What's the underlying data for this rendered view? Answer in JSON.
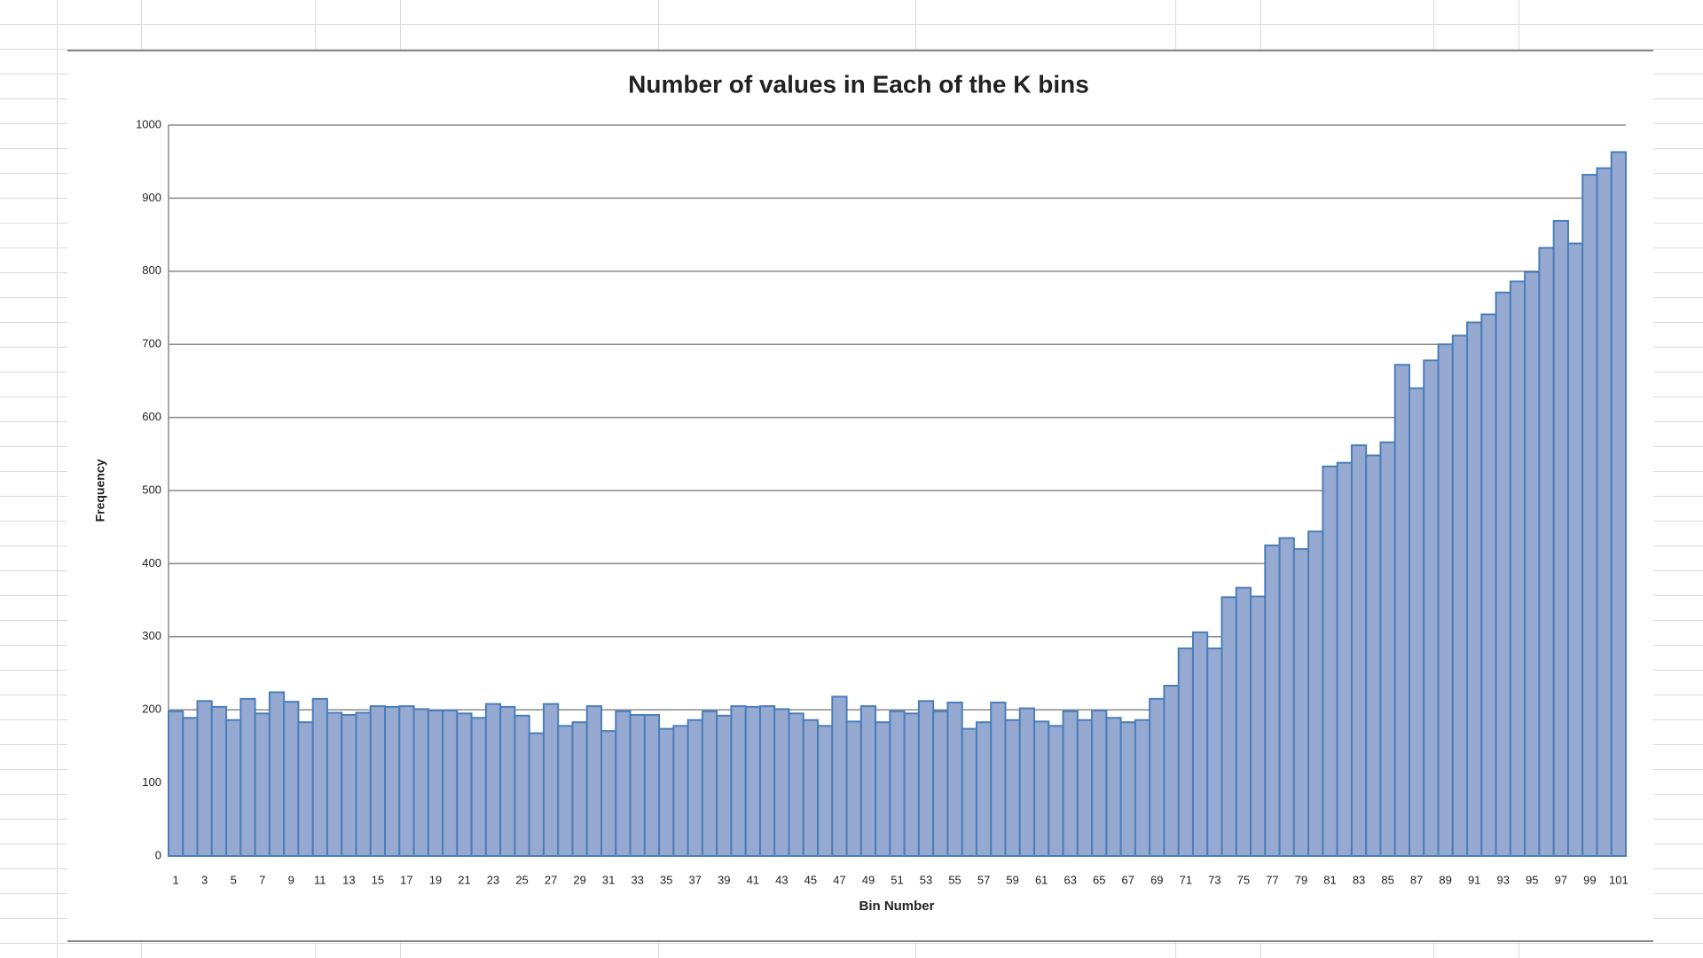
{
  "chart_data": {
    "type": "bar",
    "title": "Number of values in Each of the K bins",
    "x_label": "Bin Number",
    "y_label": "Frequency",
    "categories": [
      "1",
      null,
      "3",
      null,
      "5",
      null,
      "7",
      null,
      "9",
      null,
      "11",
      null,
      "13",
      null,
      "15",
      null,
      "17",
      null,
      "19",
      null,
      "21",
      null,
      "23",
      null,
      "25",
      null,
      "27",
      null,
      "29",
      null,
      "31",
      null,
      "33",
      null,
      "35",
      null,
      "37",
      null,
      "39",
      null,
      "41",
      null,
      "43",
      null,
      "45",
      null,
      "47",
      null,
      "49",
      null,
      "51",
      null,
      "53",
      null,
      "55",
      null,
      "57",
      null,
      "59",
      null,
      "61",
      null,
      "63",
      null,
      "65",
      null,
      "67",
      null,
      "69",
      null,
      "71",
      null,
      "73",
      null,
      "75",
      null,
      "77",
      null,
      "79",
      null,
      "81",
      null,
      "83",
      null,
      "85",
      null,
      "87",
      null,
      "89",
      null,
      "91",
      null,
      "93",
      null,
      "95",
      null,
      "97",
      null,
      "99",
      null,
      "101"
    ],
    "values": [
      198,
      189,
      212,
      204,
      186,
      215,
      195,
      224,
      211,
      183,
      215,
      196,
      193,
      196,
      205,
      204,
      205,
      201,
      199,
      199,
      195,
      189,
      208,
      204,
      192,
      168,
      208,
      178,
      183,
      205,
      171,
      198,
      193,
      193,
      174,
      178,
      186,
      198,
      192,
      205,
      204,
      205,
      201,
      195,
      186,
      178,
      218,
      184,
      205,
      183,
      198,
      195,
      212,
      198,
      210,
      174,
      183,
      210,
      186,
      202,
      184,
      178,
      198,
      186,
      199,
      189,
      183,
      186,
      215,
      233,
      284,
      306,
      284,
      354,
      367,
      355,
      425,
      435,
      420,
      444,
      533,
      538,
      562,
      548,
      566,
      672,
      640,
      678,
      700,
      712,
      730,
      741,
      771,
      786,
      799,
      832,
      869,
      838,
      932,
      941,
      963
    ],
    "color": "#95a9d1",
    "edge_color": "#4a7ebb",
    "ylim": [
      0,
      1000
    ],
    "yticks": [
      0,
      100,
      200,
      300,
      400,
      500,
      600,
      700,
      800,
      900,
      1000
    ],
    "grid": true
  }
}
